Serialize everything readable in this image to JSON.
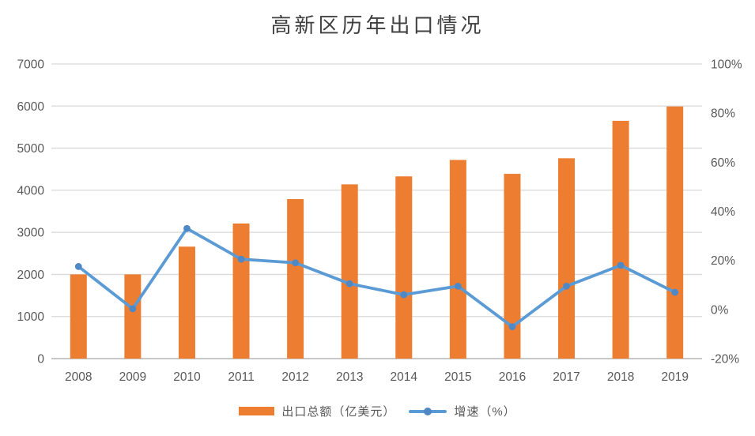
{
  "chart_data": {
    "type": "combo",
    "title": "高新区历年出口情况",
    "categories": [
      "2008",
      "2009",
      "2010",
      "2011",
      "2012",
      "2013",
      "2014",
      "2015",
      "2016",
      "2017",
      "2018",
      "2019"
    ],
    "series": [
      {
        "name": "出口总额（亿美元）",
        "type": "bar",
        "axis": "left",
        "values": [
          2000,
          2000,
          2660,
          3210,
          3790,
          4140,
          4330,
          4720,
          4390,
          4760,
          5650,
          5990
        ]
      },
      {
        "name": "增速（%）",
        "type": "line",
        "axis": "right",
        "values": [
          17.5,
          0.3,
          33,
          20.5,
          19,
          10.5,
          6,
          9.5,
          -7,
          9.5,
          18,
          7
        ]
      }
    ],
    "left_axis": {
      "min": 0,
      "max": 7000,
      "step": 1000,
      "tick_labels": [
        "0",
        "1000",
        "2000",
        "3000",
        "4000",
        "5000",
        "6000",
        "7000"
      ]
    },
    "right_axis": {
      "min": -20,
      "max": 100,
      "step": 20,
      "tick_labels": [
        "-20%",
        "0%",
        "20%",
        "40%",
        "60%",
        "80%",
        "100%"
      ]
    },
    "grid": true,
    "legend_position": "bottom",
    "colors": {
      "bar": "#ED7D31",
      "line": "#5B9BD5",
      "marker": "#4E88C5",
      "grid": "#D9D9D9",
      "baseline": "#C8C8C8",
      "axis_text": "#595959",
      "title_text": "#404040",
      "background": "#FFFFFF"
    }
  }
}
